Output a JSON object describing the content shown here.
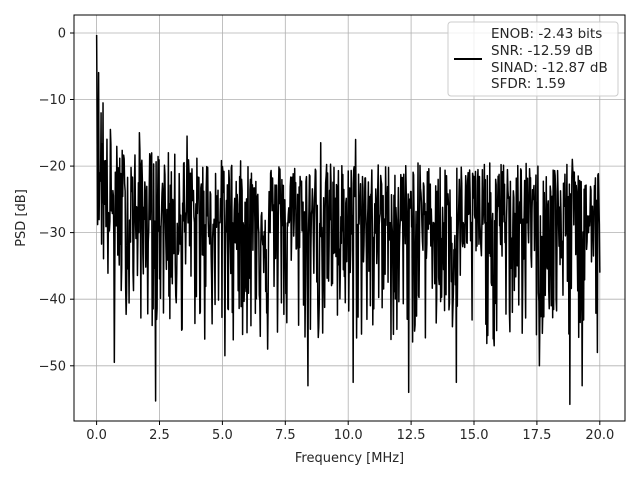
{
  "chart_data": {
    "type": "line",
    "title": "",
    "xlabel": "Frequency [MHz]",
    "ylabel": "PSD [dB]",
    "xlim": [
      -0.9,
      21.0
    ],
    "ylim": [
      -58.3,
      2.7
    ],
    "xticks": [
      0.0,
      2.5,
      5.0,
      7.5,
      10.0,
      12.5,
      15.0,
      17.5,
      20.0
    ],
    "xtick_labels": [
      "0.0",
      "2.5",
      "5.0",
      "7.5",
      "10.0",
      "12.5",
      "15.0",
      "17.5",
      "20.0"
    ],
    "yticks": [
      0,
      -10,
      -20,
      -30,
      -40,
      -50
    ],
    "ytick_labels": [
      "0",
      "−10",
      "−20",
      "−30",
      "−40",
      "−50"
    ],
    "grid": true,
    "legend_position": "top-right",
    "legend_lines": [
      "ENOB: -2.43 bits",
      "SNR: -12.59 dB",
      "SINAD: -12.87 dB",
      "SFDR: 1.59"
    ],
    "series": [
      {
        "color": "#000000",
        "x_range": [
          0.0,
          20.0
        ],
        "points": 1025,
        "envelope_approx": {
          "x": [
            0.0,
            0.05,
            0.15,
            0.3,
            0.5,
            1.0,
            2.0,
            3.0,
            5.0,
            7.5,
            10.0,
            12.5,
            15.0,
            17.5,
            20.0
          ],
          "upper": [
            -0.5,
            -3.0,
            -9.0,
            -13.0,
            -16.0,
            -17.0,
            -17.5,
            -18.0,
            -19.0,
            -19.5,
            -19.5,
            -19.5,
            -19.5,
            -19.5,
            -20.0
          ],
          "lower": [
            -25.0,
            -30.0,
            -34.0,
            -37.0,
            -40.0,
            -42.0,
            -44.0,
            -45.0,
            -46.0,
            -47.0,
            -47.0,
            -47.0,
            -47.0,
            -47.0,
            -47.0
          ],
          "median": [
            -10.0,
            -15.0,
            -21.0,
            -25.0,
            -27.0,
            -27.5,
            -28.0,
            -28.0,
            -28.5,
            -28.5,
            -28.5,
            -28.5,
            -28.5,
            -28.5,
            -28.5
          ]
        },
        "deep_nulls": [
          {
            "x": 0.7,
            "y": -49.5
          },
          {
            "x": 2.35,
            "y": -55.3
          },
          {
            "x": 3.4,
            "y": -44.5
          },
          {
            "x": 4.3,
            "y": -46.0
          },
          {
            "x": 5.1,
            "y": -48.5
          },
          {
            "x": 6.8,
            "y": -47.5
          },
          {
            "x": 8.4,
            "y": -53.0
          },
          {
            "x": 10.2,
            "y": -52.5
          },
          {
            "x": 12.4,
            "y": -54.0
          },
          {
            "x": 14.3,
            "y": -52.5
          },
          {
            "x": 15.8,
            "y": -47.0
          },
          {
            "x": 17.6,
            "y": -50.0
          },
          {
            "x": 18.8,
            "y": -55.8
          },
          {
            "x": 19.3,
            "y": -53.0
          },
          {
            "x": 19.9,
            "y": -48.0
          }
        ],
        "peaks": [
          {
            "x": 0.25,
            "y": -10.5
          },
          {
            "x": 0.55,
            "y": -14.5
          },
          {
            "x": 1.7,
            "y": -15.0
          },
          {
            "x": 3.6,
            "y": -15.5
          },
          {
            "x": 8.9,
            "y": -16.5
          },
          {
            "x": 10.3,
            "y": -16.0
          },
          {
            "x": 18.9,
            "y": -19.0
          }
        ]
      }
    ]
  }
}
